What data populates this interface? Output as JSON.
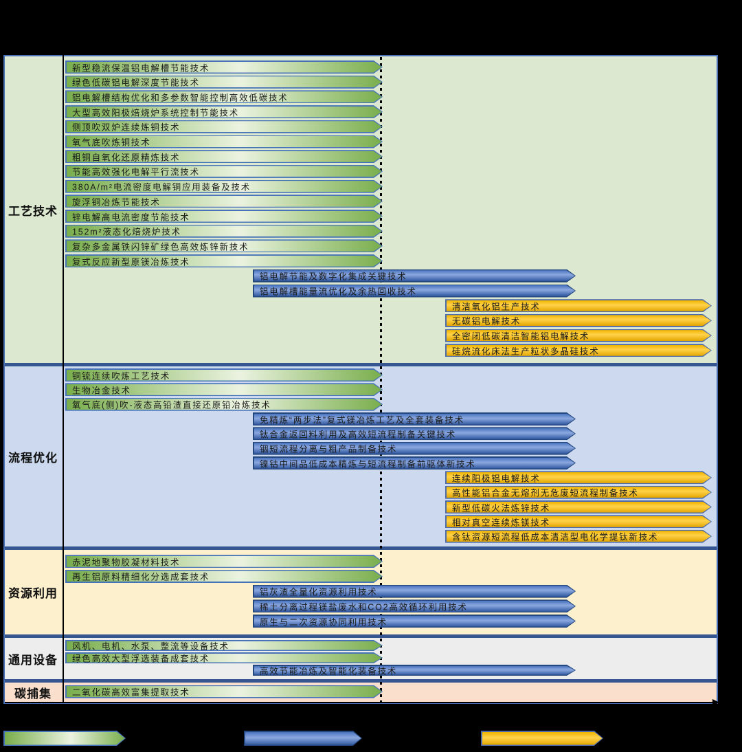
{
  "colors": {
    "panel_border": "#4a6fb5",
    "separator": "#35568f",
    "axis": "#000000",
    "green": {
      "border": "#4673b8",
      "edge": "#79ae4c",
      "mid": "#ebf3e0"
    },
    "blue": {
      "border": "#24477e",
      "top": "#4a74c0",
      "mid": "#8ba8df",
      "bottom": "#30579f"
    },
    "orange": {
      "border": "#4d6ba8",
      "top": "#f0b400",
      "mid": "#ffd24a",
      "bottom": "#e3a600"
    }
  },
  "sections": [
    {
      "label": "工艺技术",
      "bg": "#dde8d1",
      "bars": [
        {
          "type": "green",
          "text": "新型稳流保温铝电解槽节能技术"
        },
        {
          "type": "green",
          "text": "绿色低碳铝电解深度节能技术"
        },
        {
          "type": "green",
          "text": "铝电解槽结构优化和多参数智能控制高效低碳技术"
        },
        {
          "type": "green",
          "text": "大型高效阳极焙烧炉系统控制节能技术"
        },
        {
          "type": "green",
          "text": "侧顶吹双炉连续炼铜技术"
        },
        {
          "type": "green",
          "text": "氧气底吹炼铜技术"
        },
        {
          "type": "green",
          "text": "粗铜自氧化还原精炼技术"
        },
        {
          "type": "green",
          "text": "节能高效强化电解平行流技术"
        },
        {
          "type": "green",
          "text": "380A/m²电流密度电解铜应用装备及技术"
        },
        {
          "type": "green",
          "text": "旋浮铜冶炼节能技术"
        },
        {
          "type": "green",
          "text": "锌电解高电流密度节能技术"
        },
        {
          "type": "green",
          "text": "152m²液态化焙烧炉技术"
        },
        {
          "type": "green",
          "text": "复杂多金属铁闪锌矿绿色高效炼锌新技术"
        },
        {
          "type": "green",
          "text": "复式反应新型原镁冶炼技术"
        },
        {
          "type": "blue",
          "text": "铝电解节能及数字化集成关键技术"
        },
        {
          "type": "blue",
          "text": "铝电解槽能量流优化及余热回收技术"
        },
        {
          "type": "orange",
          "text": "清洁氧化铝生产技术"
        },
        {
          "type": "orange",
          "text": "无碳铝电解技术"
        },
        {
          "type": "orange",
          "text": "全密闭低碳清洁智能铝电解技术"
        },
        {
          "type": "orange",
          "text": "硅烷流化床法生产粒状多晶硅技术"
        }
      ]
    },
    {
      "label": "流程优化",
      "bg": "#ccd9ee",
      "bars": [
        {
          "type": "green",
          "text": "铜锍连续吹炼工艺技术"
        },
        {
          "type": "green",
          "text": "生物冶金技术"
        },
        {
          "type": "green",
          "text": "氧气底(侧)吹-液态高铅渣直接还原铅冶炼技术"
        },
        {
          "type": "blue",
          "text": "免精炼“两步法”复式镁冶炼工艺及全套装备技术"
        },
        {
          "type": "blue",
          "text": "钛合金返回料利用及高效短流程制备关键技术"
        },
        {
          "type": "blue",
          "text": "铟短流程分离与粗产品制备技术"
        },
        {
          "type": "blue",
          "text": "镍钴中间品低成本精炼与短流程制备前驱体新技术"
        },
        {
          "type": "orange",
          "text": "连续阳极铝电解技术"
        },
        {
          "type": "orange",
          "text": "高性能铝合金无熔剂无危废短流程制备技术"
        },
        {
          "type": "orange",
          "text": "新型低碳火法炼锌技术"
        },
        {
          "type": "orange",
          "text": "相对真空连续炼镁技术"
        },
        {
          "type": "orange",
          "text": "含钛资源短流程低成本清洁型电化学提钛新技术"
        }
      ]
    },
    {
      "label": "资源利用",
      "bg": "#fdf0cc",
      "bars": [
        {
          "type": "green",
          "text": "赤泥地聚物胶凝材料技术"
        },
        {
          "type": "green",
          "text": "再生铝原料精细化分选成套技术"
        },
        {
          "type": "blue",
          "text": "铝灰渣全量化资源利用技术"
        },
        {
          "type": "blue",
          "text": "稀土分离过程镁盐废水和CO2高效循环利用技术"
        },
        {
          "type": "blue",
          "text": "原生与二次资源协同利用技术"
        }
      ]
    },
    {
      "label": "通用设备",
      "bg": "#ededed",
      "bars": [
        {
          "type": "green",
          "text": "风机、电机、水泵、整流等设备技术"
        },
        {
          "type": "green",
          "text": "绿色高效大型浮选装备成套技术"
        },
        {
          "type": "blue",
          "text": "高效节能冶炼及智能化装备技术"
        }
      ]
    },
    {
      "label": "碳捕集",
      "bg": "#fbdfcd",
      "bars": [
        {
          "type": "green",
          "text": "二氧化碳高效富集提取技术"
        }
      ]
    }
  ],
  "legend": {
    "items": [
      {
        "type": "green",
        "label": ""
      },
      {
        "type": "blue",
        "label": ""
      },
      {
        "type": "orange",
        "label": ""
      }
    ]
  }
}
